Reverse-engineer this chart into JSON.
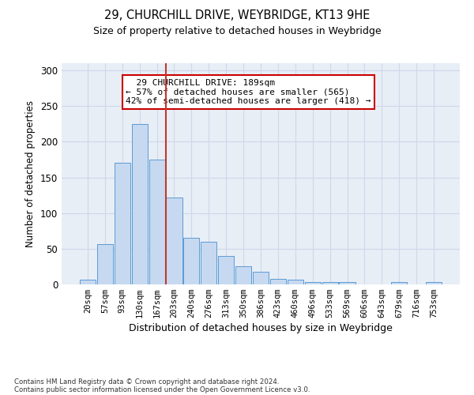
{
  "title1": "29, CHURCHILL DRIVE, WEYBRIDGE, KT13 9HE",
  "title2": "Size of property relative to detached houses in Weybridge",
  "xlabel": "Distribution of detached houses by size in Weybridge",
  "ylabel": "Number of detached properties",
  "bar_labels": [
    "20sqm",
    "57sqm",
    "93sqm",
    "130sqm",
    "167sqm",
    "203sqm",
    "240sqm",
    "276sqm",
    "313sqm",
    "350sqm",
    "386sqm",
    "423sqm",
    "460sqm",
    "496sqm",
    "533sqm",
    "569sqm",
    "606sqm",
    "643sqm",
    "679sqm",
    "716sqm",
    "753sqm"
  ],
  "bar_heights": [
    7,
    57,
    170,
    225,
    175,
    122,
    65,
    60,
    40,
    25,
    18,
    8,
    7,
    3,
    3,
    3,
    0,
    0,
    3,
    0,
    3
  ],
  "bar_color": "#c6d9f0",
  "bar_edge_color": "#5b9bd5",
  "vline_x_bar_index": 4.5,
  "vline_color": "#c0392b",
  "annotation_text": "  29 CHURCHILL DRIVE: 189sqm  \n← 57% of detached houses are smaller (565)\n42% of semi-detached houses are larger (418) →",
  "annotation_box_color": "#ffffff",
  "annotation_box_edge": "#cc0000",
  "ylim": [
    0,
    310
  ],
  "yticks": [
    0,
    50,
    100,
    150,
    200,
    250,
    300
  ],
  "footer1": "Contains HM Land Registry data © Crown copyright and database right 2024.",
  "footer2": "Contains public sector information licensed under the Open Government Licence v3.0.",
  "grid_color": "#cdd8ea",
  "background_color": "#e8eef6"
}
